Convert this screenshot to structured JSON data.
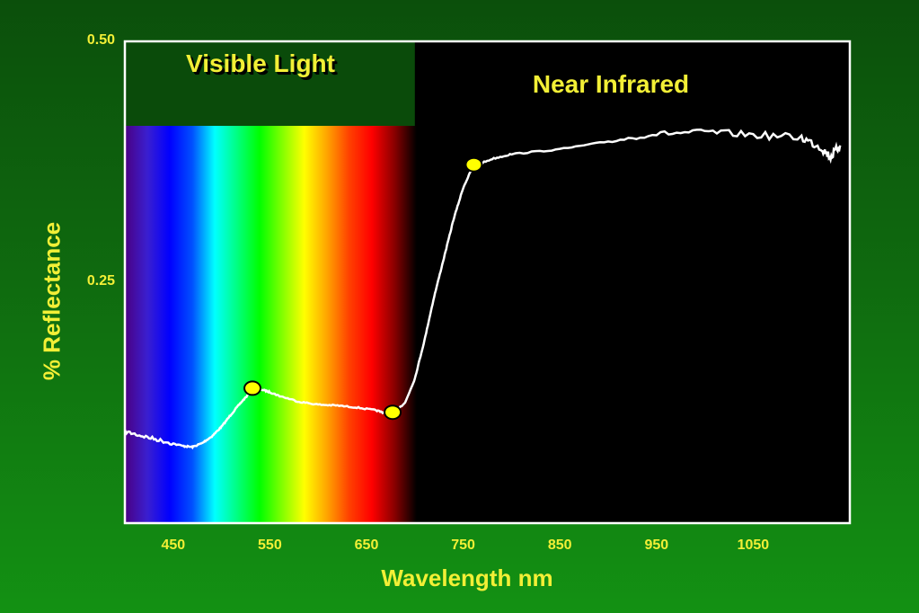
{
  "chart_data": {
    "type": "line",
    "title": "",
    "xlabel": "Wavelength nm",
    "ylabel": "% Reflectance",
    "xlim": [
      400,
      1150
    ],
    "ylim": [
      0,
      0.5
    ],
    "xticks": [
      450,
      550,
      650,
      750,
      850,
      950,
      1050
    ],
    "xtick_labels": [
      "450",
      "550",
      "650",
      "750",
      "850",
      "950",
      "1050"
    ],
    "yticks": [
      0.25,
      0.5
    ],
    "ytick_labels": [
      "0.25",
      "0.50"
    ],
    "grid": false,
    "regions": [
      {
        "label": "Visible Light",
        "x_start": 400,
        "x_end": 700
      },
      {
        "label": "Near Infrared",
        "x_start": 700,
        "x_end": 1150
      }
    ],
    "series": [
      {
        "x": [
          400,
          420,
          440,
          460,
          470,
          480,
          490,
          500,
          510,
          520,
          530,
          540,
          550,
          560,
          580,
          600,
          620,
          640,
          660,
          670,
          675,
          680,
          690,
          700,
          710,
          720,
          730,
          740,
          750,
          760,
          780,
          800,
          850,
          900,
          950,
          1000,
          1050,
          1100,
          1120,
          1130,
          1140
        ],
        "y": [
          0.095,
          0.09,
          0.085,
          0.08,
          0.079,
          0.083,
          0.09,
          0.1,
          0.113,
          0.125,
          0.136,
          0.139,
          0.136,
          0.132,
          0.126,
          0.123,
          0.122,
          0.12,
          0.117,
          0.114,
          0.115,
          0.117,
          0.125,
          0.15,
          0.19,
          0.235,
          0.275,
          0.315,
          0.348,
          0.37,
          0.378,
          0.383,
          0.388,
          0.396,
          0.404,
          0.406,
          0.403,
          0.4,
          0.39,
          0.38,
          0.392
        ]
      }
    ],
    "markers": [
      {
        "x": 532,
        "y": 0.14
      },
      {
        "x": 677,
        "y": 0.115
      },
      {
        "x": 761,
        "y": 0.372
      }
    ],
    "colors": {
      "spectrum": [
        "#4b0082",
        "#3a1fd0",
        "#0000ff",
        "#0050ff",
        "#00ffff",
        "#00ff80",
        "#00ff00",
        "#80ff00",
        "#ffff00",
        "#ffa500",
        "#ff4000",
        "#ff0000",
        "#8b0000",
        "#000000"
      ],
      "curve": "#ffffff",
      "marker_fill": "#ffff00",
      "marker_stroke": "#000000",
      "axis_text": "#f2ef36",
      "plot_background": "#000000",
      "visible_band_header": "#0a4b0a",
      "frame": "#ffffff"
    }
  }
}
